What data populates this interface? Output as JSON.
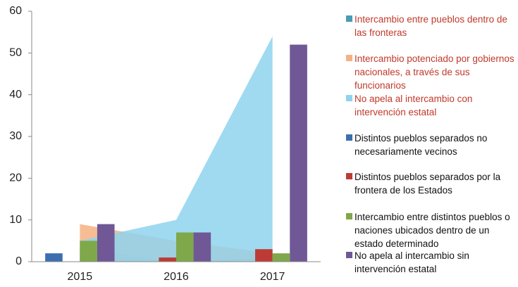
{
  "chart_data": {
    "type": "bar",
    "categories": [
      "2015",
      "2016",
      "2017"
    ],
    "ylim": [
      0,
      60
    ],
    "yticks": [
      0,
      10,
      20,
      30,
      40,
      50,
      60
    ],
    "series": [
      {
        "name": "Intercambio entre pueblos dentro de las fronteras",
        "type": "area",
        "color": "#4a9bb5",
        "values": [
          3,
          0,
          1
        ]
      },
      {
        "name": "Intercambio potenciado por gobiernos nacionales, a través de sus funcionarios",
        "type": "area",
        "color": "#f4b183",
        "values": [
          9,
          5,
          2
        ]
      },
      {
        "name": "No apela al intercambio con intervención estatal",
        "type": "area",
        "color": "#8ed3ef",
        "values": [
          5,
          10,
          54
        ]
      },
      {
        "name": "Distintos pueblos separados no necesariamente vecinos",
        "type": "bar",
        "color": "#3b6fb0",
        "values": [
          2,
          0,
          0
        ]
      },
      {
        "name": "Distintos pueblos separados por la frontera de los Estados",
        "type": "bar",
        "color": "#be3b35",
        "values": [
          0,
          1,
          3
        ]
      },
      {
        "name": "Intercambio entre distintos pueblos o naciones ubicados dentro de un estado determinado",
        "type": "bar",
        "color": "#7fa84a",
        "values": [
          5,
          7,
          2
        ]
      },
      {
        "name": "No apela al intercambio sin intervención estatal",
        "type": "bar",
        "color": "#6f5895",
        "values": [
          9,
          7,
          52
        ]
      }
    ]
  }
}
